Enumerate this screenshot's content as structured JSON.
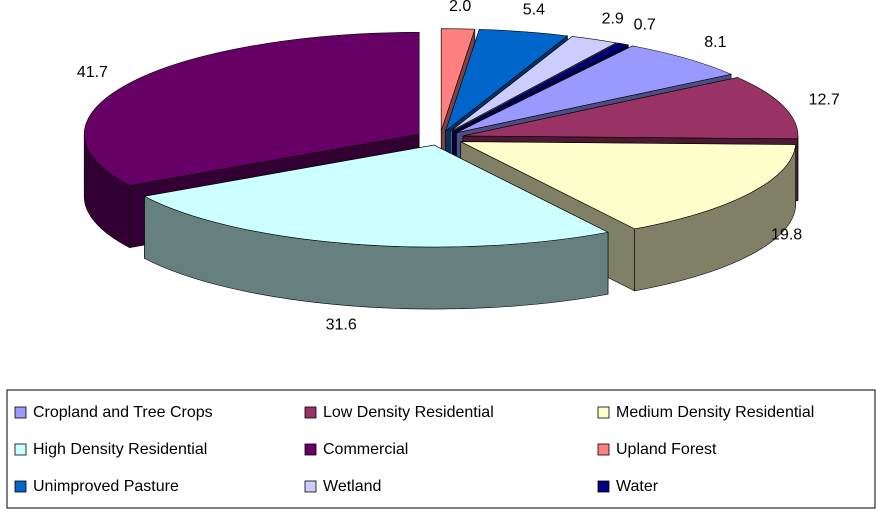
{
  "chart_data": {
    "type": "pie3d",
    "categories": [
      "Cropland and Tree Crops",
      "Low Density Residential",
      "Medium Density Residential",
      "High Density Residential",
      "Commercial",
      "Upland Forest",
      "Unimproved Pasture",
      "Wetland",
      "Water"
    ],
    "values": [
      8.1,
      12.7,
      19.8,
      31.6,
      41.7,
      2.0,
      5.4,
      2.9,
      0.7
    ],
    "value_labels": [
      "8.1",
      "12.7",
      "19.8",
      "31.6",
      "41.7",
      "2.0",
      "5.4",
      "2.9",
      "0.7"
    ],
    "colors": [
      "#9999ff",
      "#993366",
      "#ffffcc",
      "#ccffff",
      "#660066",
      "#ff8080",
      "#0066cc",
      "#ccccff",
      "#000080"
    ],
    "legend": "bottom"
  }
}
